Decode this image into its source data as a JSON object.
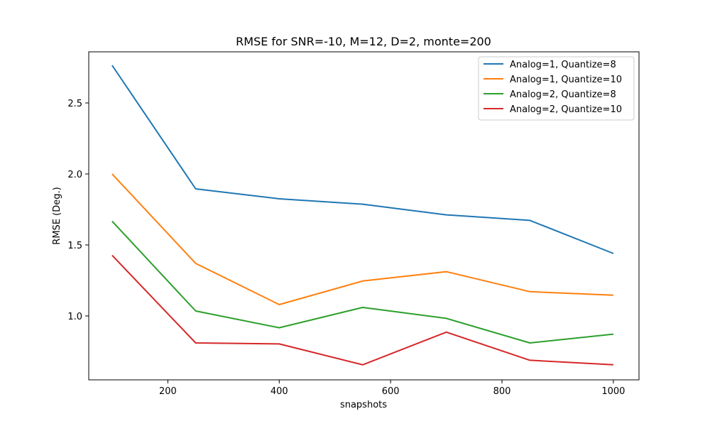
{
  "chart_data": {
    "type": "line",
    "title": "RMSE for SNR=-10, M=12, D=2, monte=200",
    "xlabel": "snapshots",
    "ylabel": "RMSE (Deg.)",
    "x": [
      100,
      250,
      400,
      550,
      700,
      850,
      1000
    ],
    "xlim": [
      58,
      1046
    ],
    "ylim": [
      0.55,
      2.86
    ],
    "xticks": [
      200,
      400,
      600,
      800,
      1000
    ],
    "yticks": [
      1.0,
      1.5,
      2.0,
      2.5
    ],
    "ytick_labels": [
      "1.0",
      "1.5",
      "2.0",
      "2.5"
    ],
    "xtick_labels": [
      "200",
      "400",
      "600",
      "800",
      "1000"
    ],
    "grid": false,
    "legend": "top-right",
    "series": [
      {
        "name": "Analog=1, Quantize=8",
        "color": "#1f77b4",
        "values": [
          2.765,
          1.895,
          1.825,
          1.787,
          1.712,
          1.673,
          1.44
        ]
      },
      {
        "name": "Analog=1, Quantize=10",
        "color": "#ff7f0e",
        "values": [
          2.0,
          1.37,
          1.08,
          1.246,
          1.312,
          1.171,
          1.146
        ]
      },
      {
        "name": "Analog=2, Quantize=8",
        "color": "#2ca02c",
        "values": [
          1.667,
          1.035,
          0.917,
          1.06,
          0.983,
          0.81,
          0.872
        ]
      },
      {
        "name": "Analog=2, Quantize=10",
        "color": "#d62728",
        "values": [
          1.427,
          0.81,
          0.803,
          0.656,
          0.886,
          0.688,
          0.656
        ]
      }
    ]
  }
}
